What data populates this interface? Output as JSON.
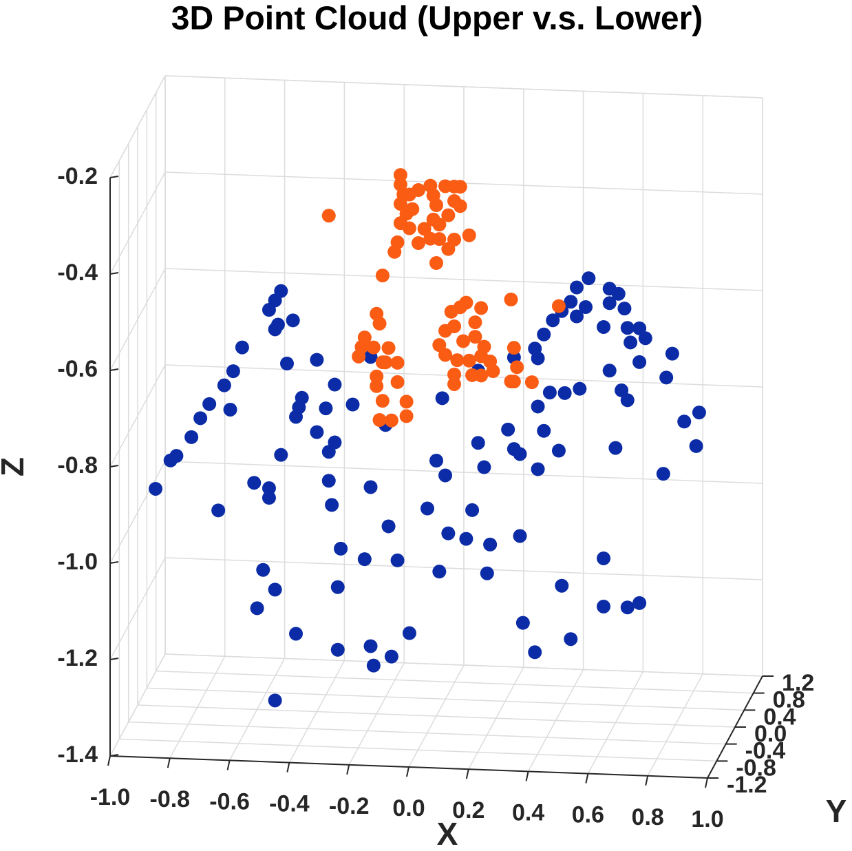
{
  "chart_data": {
    "type": "scatter3d",
    "title": "3D Point Cloud (Upper v.s. Lower)",
    "xlabel": "X",
    "ylabel": "Y",
    "zlabel": "Z",
    "xlim": [
      -1,
      1
    ],
    "ylim": [
      -1.2,
      1.2
    ],
    "zlim": [
      -1.4,
      -0.2
    ],
    "xticks": [
      {
        "value": -1,
        "label": "-1.0"
      },
      -0.8,
      -0.6,
      -0.4,
      -0.2,
      {
        "value": 0,
        "label": "0.0"
      },
      0.2,
      0.4,
      0.6,
      0.8,
      {
        "value": 1,
        "label": "1.0"
      }
    ],
    "yticks": [
      -1.2,
      -0.8,
      -0.4,
      {
        "value": 0,
        "label": "0.0"
      },
      0.4,
      0.8,
      1.2
    ],
    "zticks": [
      -1.4,
      -1.2,
      {
        "value": -1,
        "label": "-1.0"
      },
      -0.8,
      -0.6,
      -0.4,
      -0.2
    ],
    "grid": true,
    "series": [
      {
        "color": "#0b2ca6",
        "x": [
          -0.94,
          -0.89,
          -0.87,
          -0.82,
          -0.79,
          -0.76,
          -0.71,
          -0.68,
          -0.65,
          -0.69,
          -0.56,
          -0.54,
          -0.52,
          -0.54,
          -0.53,
          -0.48,
          -0.5,
          -0.4,
          -0.45,
          -0.46,
          -0.47,
          -0.34,
          -0.37,
          -0.28,
          -0.4,
          -0.34,
          -0.36,
          -0.52,
          -0.61,
          -0.56,
          -0.56,
          -0.73,
          -0.36,
          -0.35,
          -0.22,
          -0.16,
          -0.32,
          -0.24,
          -0.13,
          -0.58,
          -0.54,
          -0.6,
          -0.33,
          -0.47,
          -0.33,
          -0.22,
          -0.21,
          -0.15,
          -0.09,
          -0.54,
          -0.17,
          0.02,
          0,
          0.03,
          -0.03,
          0.04,
          0.1,
          0.12,
          0.18,
          0.01,
          0.17,
          0.14,
          0.16,
          0.24,
          0.26,
          0.28,
          0.34,
          0.28,
          0.36,
          0.41,
          0.34,
          0.38,
          0.43,
          0.48,
          0.33,
          0.36,
          0.39,
          0.42,
          0.45,
          0.47,
          0.51,
          0.47,
          0.5,
          0.58,
          0.61,
          0.58,
          0.63,
          0.56,
          0.64,
          0.68,
          0.7,
          0.65,
          0.68,
          0.79,
          0.58,
          0.77,
          0.62,
          0.64,
          0.88,
          0.83,
          0.87,
          0.6,
          0.76,
          0.56,
          0.42,
          0.56,
          0.64,
          0.68,
          0.29,
          0.45,
          0.33,
          0.26,
          0.34,
          -0.22,
          0.14
        ],
        "z": [
          -0.95,
          -0.89,
          -0.88,
          -0.84,
          -0.8,
          -0.77,
          -0.73,
          -0.7,
          -0.65,
          -0.78,
          -0.57,
          -0.55,
          -0.53,
          -0.61,
          -0.6,
          -0.59,
          -0.68,
          -0.67,
          -0.75,
          -0.77,
          -0.79,
          -0.72,
          -0.77,
          -0.76,
          -0.82,
          -0.84,
          -0.86,
          -0.87,
          -0.93,
          -0.94,
          -0.96,
          -0.99,
          -0.92,
          -0.97,
          -0.93,
          -1.01,
          -1.06,
          -1.08,
          -1.08,
          -1.11,
          -1.15,
          -1.19,
          -1.14,
          -1.24,
          -1.27,
          -1.26,
          -1.3,
          -1.28,
          -1.23,
          -1.38,
          -0.8,
          -0.74,
          -0.87,
          -0.9,
          -0.97,
          -1.02,
          -1.03,
          -0.97,
          -1.04,
          -1.1,
          -1.1,
          -0.83,
          -0.88,
          -0.8,
          -0.84,
          -0.85,
          -0.88,
          -1.02,
          -0.8,
          -0.84,
          -0.75,
          -0.72,
          -0.72,
          -0.71,
          -0.63,
          -0.6,
          -0.57,
          -0.55,
          -0.53,
          -0.5,
          -0.48,
          -0.56,
          -0.54,
          -0.5,
          -0.51,
          -0.53,
          -0.54,
          -0.58,
          -0.58,
          -0.58,
          -0.6,
          -0.61,
          -0.65,
          -0.63,
          -0.67,
          -0.68,
          -0.71,
          -0.73,
          -0.75,
          -0.77,
          -0.82,
          -0.83,
          -0.88,
          -1.06,
          -1.12,
          -1.16,
          -1.16,
          -1.15,
          -1.2,
          -1.23,
          -1.26,
          -0.65,
          -0.65,
          -0.66,
          -0.68
        ]
      },
      {
        "color": "#fa5c14",
        "x": [
          -0.36,
          -0.12,
          -0.12,
          -0.11,
          -0.12,
          -0.1,
          -0.12,
          -0.09,
          -0.08,
          -0.09,
          -0.13,
          -0.14,
          -0.06,
          -0.02,
          0,
          -0.01,
          -0.04,
          -0.06,
          -0.02,
          0.01,
          0,
          0.03,
          0.06,
          0.08,
          0.06,
          0.08,
          0.04,
          0.06,
          0.04,
          0.11,
          0.01,
          -0.18,
          -0.2,
          -0.19,
          -0.24,
          -0.25,
          -0.26,
          -0.21,
          -0.16,
          -0.17,
          -0.13,
          -0.2,
          -0.2,
          -0.13,
          -0.18,
          -0.1,
          -0.1,
          -0.19,
          -0.15,
          -0.18,
          0.08,
          0.05,
          0.1,
          0.15,
          0.03,
          0.06,
          0.13,
          0.01,
          0.09,
          0.13,
          0.16,
          0.03,
          0.07,
          0.11,
          0.15,
          0.18,
          0.06,
          0.12,
          0.15,
          0.19,
          0.06,
          0.25,
          0.41,
          0.26,
          0.27,
          0.26,
          0.25,
          0.32,
          -0.01
        ],
        "z": [
          -0.37,
          -0.28,
          -0.3,
          -0.32,
          -0.34,
          -0.36,
          -0.38,
          -0.32,
          -0.35,
          -0.39,
          -0.42,
          -0.44,
          -0.31,
          -0.3,
          -0.34,
          -0.37,
          -0.39,
          -0.42,
          -0.41,
          -0.41,
          -0.46,
          -0.3,
          -0.3,
          -0.3,
          -0.33,
          -0.34,
          -0.36,
          -0.41,
          -0.43,
          -0.4,
          -0.38,
          -0.49,
          -0.57,
          -0.59,
          -0.62,
          -0.64,
          -0.66,
          -0.64,
          -0.64,
          -0.67,
          -0.67,
          -0.7,
          -0.72,
          -0.71,
          -0.75,
          -0.75,
          -0.78,
          -0.79,
          -0.79,
          -0.67,
          -0.55,
          -0.56,
          -0.54,
          -0.55,
          -0.6,
          -0.59,
          -0.58,
          -0.63,
          -0.62,
          -0.61,
          -0.63,
          -0.65,
          -0.66,
          -0.66,
          -0.65,
          -0.66,
          -0.69,
          -0.69,
          -0.69,
          -0.68,
          -0.71,
          -0.53,
          -0.54,
          -0.63,
          -0.67,
          -0.7,
          -0.7,
          -0.7,
          -0.32
        ]
      }
    ]
  }
}
